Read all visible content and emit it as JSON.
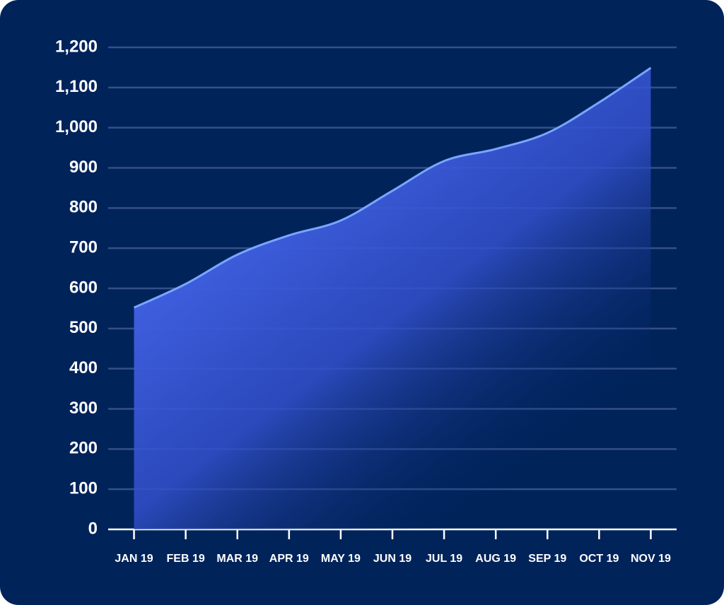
{
  "chart_data": {
    "type": "area",
    "categories": [
      "JAN 19",
      "FEB 19",
      "MAR 19",
      "APR 19",
      "MAY 19",
      "JUN 19",
      "JUL 19",
      "AUG 19",
      "SEP 19",
      "OCT 19",
      "NOV 19"
    ],
    "values": [
      552,
      611,
      684,
      732,
      769,
      843,
      917,
      947,
      987,
      1063,
      1149
    ],
    "color": "#7aa6ff",
    "ylim": [
      0,
      1200
    ],
    "yticks": [
      0,
      100,
      200,
      300,
      400,
      500,
      600,
      700,
      800,
      900,
      {
        "value": 1000,
        "label": "1,000"
      },
      {
        "value": 1100,
        "label": "1,100"
      },
      {
        "value": 1200,
        "label": "1,200"
      }
    ],
    "grid": true
  }
}
